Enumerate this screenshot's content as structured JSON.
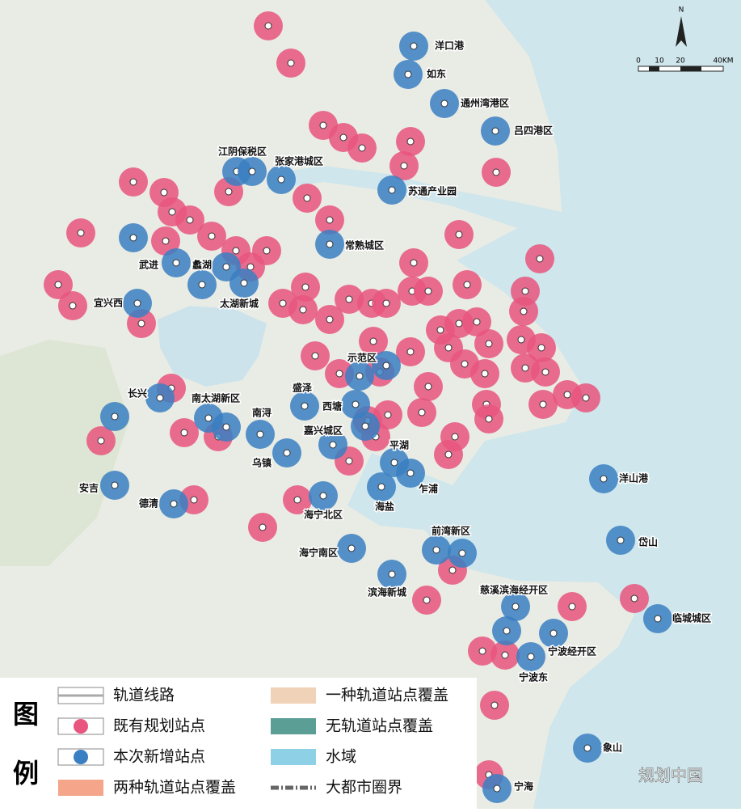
{
  "map": {
    "north": "N",
    "scale_labels": [
      "0",
      "10",
      "20",
      "40KM"
    ],
    "places": [
      "洋口港",
      "如东",
      "通州湾港区",
      "吕四港区",
      "江阴保税区",
      "张家港城区",
      "苏通产业园",
      "常熟城区",
      "武进",
      "蠡湖",
      "宜兴西",
      "太湖新城",
      "示范区",
      "长兴",
      "南太湖新区",
      "盛泽",
      "西塘",
      "南浔",
      "嘉兴城区",
      "平湖",
      "乌镇",
      "洋山港",
      "安吉",
      "乍浦",
      "德清",
      "海盐",
      "海宁北区",
      "前湾新区",
      "岱山",
      "海宁南区",
      "滨海新城",
      "慈溪滨海经开区",
      "临城城区",
      "宁波经开区",
      "宁波东",
      "象山",
      "宁海"
    ]
  },
  "legend": {
    "title": [
      "图",
      "例"
    ],
    "items": [
      "轨道线路",
      "既有规划站点",
      "本次新增站点",
      "两种轨道站点覆盖",
      "一种轨道站点覆盖",
      "无轨道站点覆盖",
      "水域",
      "大都市圈界"
    ]
  },
  "watermark": "规划中国"
}
